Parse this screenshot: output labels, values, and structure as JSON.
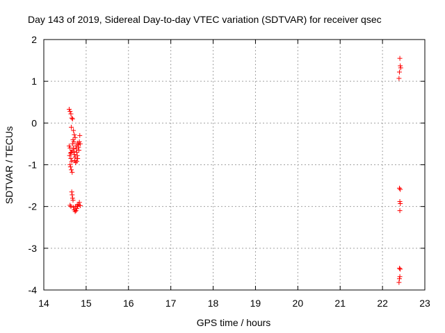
{
  "chart_data": {
    "type": "scatter",
    "title": "Day 143 of 2019, Sidereal Day-to-day VTEC variation (SDTVAR) for receiver qsec",
    "xlabel": "GPS time / hours",
    "ylabel": "SDTVAR / TECUs",
    "xlim": [
      14,
      23
    ],
    "ylim": [
      -4,
      2
    ],
    "xticks": [
      "14",
      "15",
      "16",
      "17",
      "18",
      "19",
      "20",
      "21",
      "22",
      "23"
    ],
    "yticks": [
      "-4",
      "-3",
      "-2",
      "-1",
      "0",
      "1",
      "2"
    ],
    "grid": true,
    "marker": "+",
    "color": "#ff0000",
    "points": [
      [
        14.6,
        0.33
      ],
      [
        14.62,
        0.28
      ],
      [
        14.64,
        0.22
      ],
      [
        14.66,
        0.12
      ],
      [
        14.68,
        0.1
      ],
      [
        14.65,
        -0.1
      ],
      [
        14.7,
        -0.18
      ],
      [
        14.72,
        -0.28
      ],
      [
        14.74,
        -0.35
      ],
      [
        14.6,
        -0.55
      ],
      [
        14.62,
        -0.6
      ],
      [
        14.63,
        -0.72
      ],
      [
        14.61,
        -0.78
      ],
      [
        14.64,
        -0.85
      ],
      [
        14.66,
        -0.92
      ],
      [
        14.62,
        -1.0
      ],
      [
        14.63,
        -1.05
      ],
      [
        14.65,
        -1.12
      ],
      [
        14.67,
        -1.18
      ],
      [
        14.68,
        -0.5
      ],
      [
        14.7,
        -0.6
      ],
      [
        14.71,
        -0.68
      ],
      [
        14.72,
        -0.75
      ],
      [
        14.74,
        -0.82
      ],
      [
        14.73,
        -0.9
      ],
      [
        14.75,
        -0.95
      ],
      [
        14.76,
        -0.55
      ],
      [
        14.77,
        -0.62
      ],
      [
        14.78,
        -0.7
      ],
      [
        14.79,
        -0.78
      ],
      [
        14.8,
        -0.48
      ],
      [
        14.81,
        -0.52
      ],
      [
        14.82,
        -0.58
      ],
      [
        14.83,
        -0.65
      ],
      [
        14.84,
        -0.45
      ],
      [
        14.85,
        -0.3
      ],
      [
        14.86,
        -0.5
      ],
      [
        14.8,
        -0.85
      ],
      [
        14.78,
        -0.92
      ],
      [
        14.69,
        -0.4
      ],
      [
        14.71,
        -0.45
      ],
      [
        14.67,
        -0.65
      ],
      [
        14.65,
        -0.7
      ],
      [
        14.66,
        -1.65
      ],
      [
        14.67,
        -1.72
      ],
      [
        14.68,
        -1.8
      ],
      [
        14.69,
        -1.85
      ],
      [
        14.62,
        -1.97
      ],
      [
        14.64,
        -2.0
      ],
      [
        14.7,
        -2.02
      ],
      [
        14.72,
        -2.08
      ],
      [
        14.74,
        -2.12
      ],
      [
        14.76,
        -2.1
      ],
      [
        14.78,
        -2.05
      ],
      [
        14.8,
        -2.0
      ],
      [
        14.82,
        -1.95
      ],
      [
        14.84,
        -1.9
      ],
      [
        14.86,
        -1.98
      ],
      [
        14.75,
        -2.0
      ],
      [
        14.79,
        -1.97
      ],
      [
        22.41,
        1.55
      ],
      [
        22.42,
        1.37
      ],
      [
        22.43,
        1.32
      ],
      [
        22.4,
        1.22
      ],
      [
        22.39,
        1.07
      ],
      [
        22.4,
        -1.56
      ],
      [
        22.42,
        -1.59
      ],
      [
        22.41,
        -1.88
      ],
      [
        22.42,
        -1.93
      ],
      [
        22.41,
        -2.1
      ],
      [
        22.4,
        -3.48
      ],
      [
        22.42,
        -3.5
      ],
      [
        22.41,
        -3.68
      ],
      [
        22.4,
        -3.73
      ],
      [
        22.39,
        -3.82
      ]
    ]
  }
}
